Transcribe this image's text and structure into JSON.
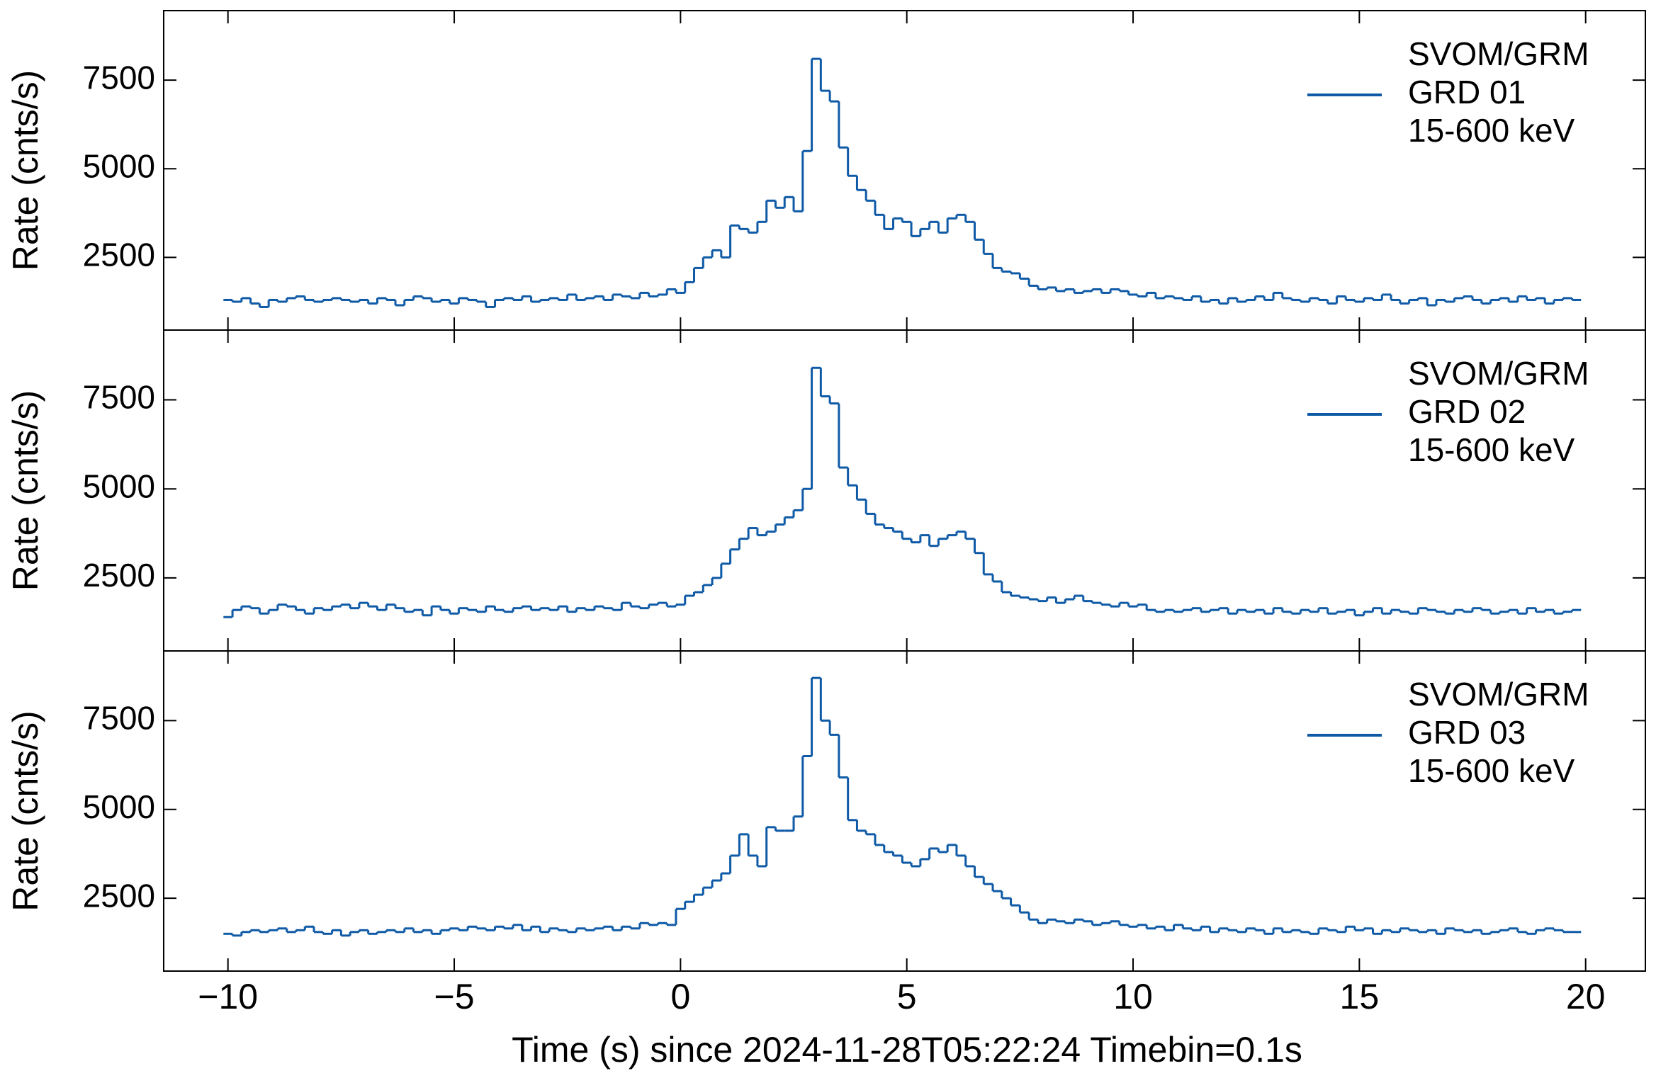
{
  "chart_data": {
    "type": "step-line",
    "xlabel": "Time (s) since 2024-11-28T05:22:24 Timebin=0.1s",
    "ylabel": "Rate (cnts/s)",
    "xlim": [
      -11.42,
      21.32
    ],
    "xticks": [
      {
        "value": -10,
        "label": "−10"
      },
      {
        "value": -5,
        "label": "−5"
      },
      0,
      5,
      10,
      15,
      20
    ],
    "ylim": [
      450,
      9460
    ],
    "yticks": [
      2500,
      5000,
      7500
    ],
    "legend": "upper right",
    "x": [
      -10,
      -9.8,
      -9.6,
      -9.4,
      -9.2,
      -9,
      -8.8,
      -8.6,
      -8.4,
      -8.2,
      -8,
      -7.8,
      -7.6,
      -7.4,
      -7.2,
      -7,
      -6.8,
      -6.6,
      -6.4,
      -6.2,
      -6,
      -5.8,
      -5.6,
      -5.4,
      -5.2,
      -5,
      -4.8,
      -4.6,
      -4.4,
      -4.2,
      -4,
      -3.8,
      -3.6,
      -3.4,
      -3.2,
      -3,
      -2.8,
      -2.6,
      -2.4,
      -2.2,
      -2,
      -1.8,
      -1.6,
      -1.4,
      -1.2,
      -1,
      -0.8,
      -0.6,
      -0.4,
      -0.2,
      0,
      0.2,
      0.4,
      0.6,
      0.8,
      1,
      1.2,
      1.4,
      1.6,
      1.8,
      2,
      2.2,
      2.4,
      2.6,
      2.8,
      3,
      3.2,
      3.4,
      3.6,
      3.8,
      4,
      4.2,
      4.4,
      4.6,
      4.8,
      5,
      5.2,
      5.4,
      5.6,
      5.8,
      6,
      6.2,
      6.4,
      6.6,
      6.8,
      7,
      7.2,
      7.4,
      7.6,
      7.8,
      8,
      8.2,
      8.4,
      8.6,
      8.8,
      9,
      9.2,
      9.4,
      9.6,
      9.8,
      10,
      10.2,
      10.4,
      10.6,
      10.8,
      11,
      11.2,
      11.4,
      11.6,
      11.8,
      12,
      12.2,
      12.4,
      12.6,
      12.8,
      13,
      13.2,
      13.4,
      13.6,
      13.8,
      14,
      14.2,
      14.4,
      14.6,
      14.8,
      15,
      15.2,
      15.4,
      15.6,
      15.8,
      16,
      16.2,
      16.4,
      16.6,
      16.8,
      17,
      17.2,
      17.4,
      17.6,
      17.8,
      18,
      18.2,
      18.4,
      18.6,
      18.8,
      19,
      19.2,
      19.4,
      19.6,
      19.8
    ],
    "series": [
      {
        "instrument": "SVOM/GRM",
        "name": "GRD 01",
        "energy_band": "15-600 keV",
        "color": "#0f5aa6",
        "values": [
          1300,
          1250,
          1350,
          1200,
          1100,
          1300,
          1250,
          1350,
          1400,
          1300,
          1250,
          1300,
          1350,
          1300,
          1250,
          1300,
          1200,
          1350,
          1300,
          1150,
          1300,
          1400,
          1350,
          1250,
          1300,
          1200,
          1350,
          1300,
          1250,
          1100,
          1300,
          1350,
          1300,
          1400,
          1250,
          1300,
          1350,
          1300,
          1450,
          1300,
          1350,
          1400,
          1300,
          1450,
          1400,
          1350,
          1500,
          1400,
          1450,
          1600,
          1500,
          1800,
          2200,
          2500,
          2700,
          2500,
          3400,
          3300,
          3200,
          3500,
          4100,
          3900,
          4200,
          3800,
          5500,
          8100,
          7200,
          6900,
          5600,
          4800,
          4400,
          4100,
          3700,
          3300,
          3600,
          3500,
          3100,
          3300,
          3500,
          3200,
          3600,
          3700,
          3500,
          3000,
          2600,
          2200,
          2100,
          2050,
          1900,
          1700,
          1600,
          1650,
          1550,
          1600,
          1500,
          1550,
          1600,
          1500,
          1600,
          1550,
          1450,
          1400,
          1500,
          1350,
          1400,
          1350,
          1300,
          1400,
          1250,
          1300,
          1200,
          1350,
          1250,
          1300,
          1400,
          1300,
          1500,
          1350,
          1300,
          1250,
          1350,
          1300,
          1200,
          1400,
          1300,
          1250,
          1350,
          1300,
          1450,
          1300,
          1200,
          1300,
          1350,
          1150,
          1300,
          1250,
          1350,
          1400,
          1300,
          1200,
          1300,
          1350,
          1250,
          1400,
          1300,
          1350,
          1200,
          1300,
          1350,
          1300
        ]
      },
      {
        "instrument": "SVOM/GRM",
        "name": "GRD 02",
        "energy_band": "15-600 keV",
        "color": "#0f5aa6",
        "values": [
          1400,
          1600,
          1700,
          1650,
          1500,
          1600,
          1750,
          1700,
          1600,
          1500,
          1650,
          1600,
          1700,
          1750,
          1650,
          1800,
          1700,
          1600,
          1750,
          1650,
          1550,
          1600,
          1450,
          1700,
          1600,
          1500,
          1650,
          1600,
          1550,
          1700,
          1600,
          1550,
          1650,
          1700,
          1600,
          1650,
          1600,
          1700,
          1550,
          1650,
          1600,
          1700,
          1650,
          1600,
          1800,
          1700,
          1650,
          1750,
          1800,
          1700,
          1750,
          2000,
          2100,
          2300,
          2500,
          2900,
          3300,
          3600,
          3900,
          3700,
          3800,
          4000,
          4200,
          4400,
          5000,
          8400,
          7600,
          7400,
          5600,
          5100,
          4700,
          4300,
          4000,
          3900,
          3800,
          3600,
          3500,
          3700,
          3400,
          3600,
          3700,
          3800,
          3600,
          3200,
          2600,
          2400,
          2100,
          2000,
          1950,
          1900,
          1850,
          1950,
          1800,
          1900,
          2000,
          1850,
          1800,
          1750,
          1700,
          1800,
          1700,
          1750,
          1600,
          1550,
          1600,
          1550,
          1600,
          1650,
          1550,
          1600,
          1650,
          1500,
          1600,
          1550,
          1600,
          1500,
          1650,
          1550,
          1500,
          1600,
          1550,
          1650,
          1500,
          1550,
          1600,
          1450,
          1550,
          1650,
          1500,
          1600,
          1550,
          1500,
          1650,
          1600,
          1550,
          1500,
          1600,
          1550,
          1650,
          1600,
          1500,
          1550,
          1600,
          1500,
          1650,
          1550,
          1600,
          1500,
          1550,
          1600
        ]
      },
      {
        "instrument": "SVOM/GRM",
        "name": "GRD 03",
        "energy_band": "15-600 keV",
        "color": "#0f5aa6",
        "values": [
          1500,
          1450,
          1550,
          1600,
          1550,
          1600,
          1650,
          1550,
          1600,
          1700,
          1550,
          1500,
          1600,
          1450,
          1550,
          1600,
          1500,
          1550,
          1600,
          1550,
          1650,
          1550,
          1600,
          1500,
          1600,
          1650,
          1600,
          1700,
          1650,
          1600,
          1700,
          1650,
          1750,
          1600,
          1700,
          1550,
          1650,
          1600,
          1550,
          1650,
          1600,
          1650,
          1700,
          1600,
          1700,
          1650,
          1800,
          1750,
          1800,
          1750,
          2200,
          2400,
          2600,
          2800,
          3000,
          3200,
          3700,
          4300,
          3700,
          3400,
          4500,
          4400,
          4400,
          4800,
          6500,
          8700,
          7500,
          7100,
          5900,
          4700,
          4400,
          4300,
          4000,
          3800,
          3700,
          3500,
          3400,
          3600,
          3900,
          3800,
          4000,
          3700,
          3400,
          3100,
          2900,
          2700,
          2500,
          2300,
          2100,
          1900,
          1800,
          1900,
          1850,
          1800,
          1900,
          1850,
          1750,
          1800,
          1850,
          1750,
          1700,
          1750,
          1650,
          1700,
          1600,
          1750,
          1650,
          1600,
          1700,
          1550,
          1650,
          1600,
          1550,
          1650,
          1600,
          1500,
          1650,
          1550,
          1600,
          1550,
          1500,
          1650,
          1600,
          1550,
          1700,
          1600,
          1650,
          1500,
          1600,
          1550,
          1650,
          1600,
          1550,
          1600,
          1500,
          1650,
          1600,
          1550,
          1600,
          1500,
          1550,
          1600,
          1650,
          1550,
          1500,
          1600,
          1650,
          1600,
          1550,
          1550
        ]
      }
    ]
  }
}
